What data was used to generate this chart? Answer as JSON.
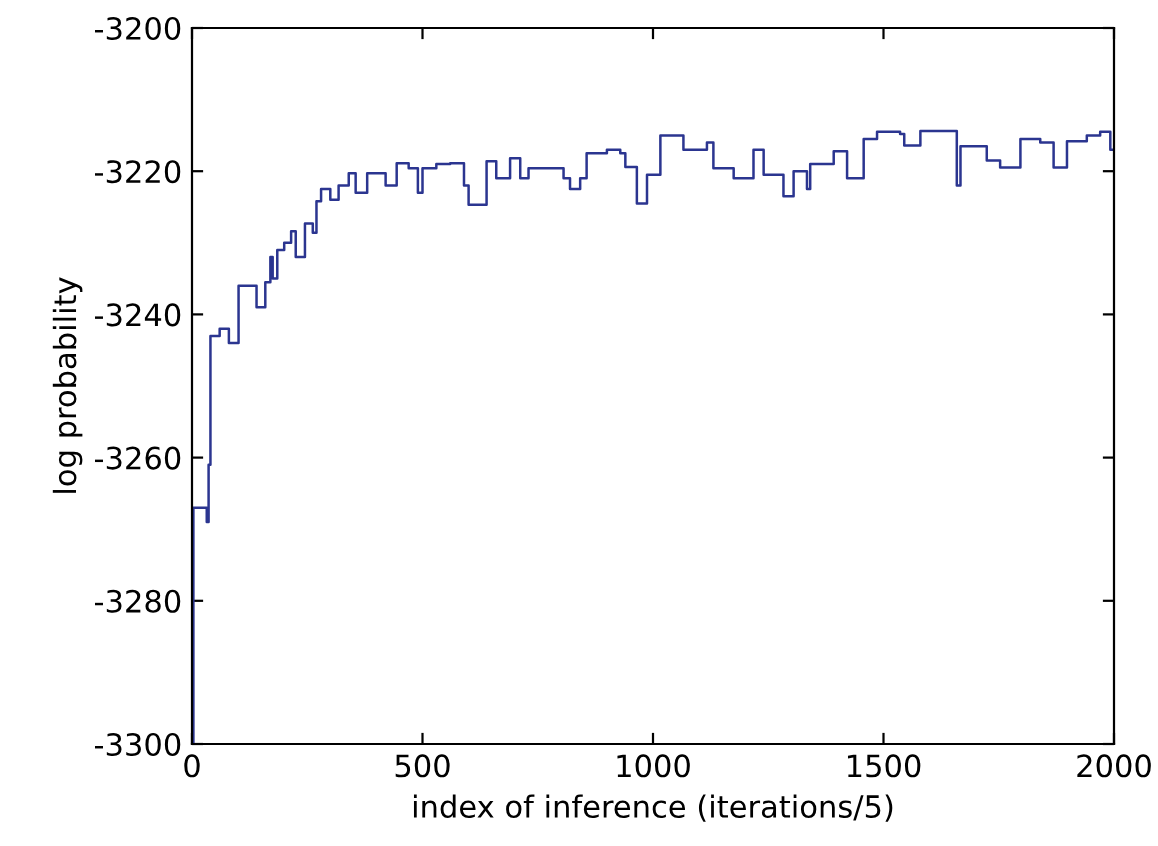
{
  "chart_data": {
    "type": "step",
    "xlabel": "index of inference (iterations/5)",
    "ylabel": "log probability",
    "xlim": [
      0,
      2000
    ],
    "ylim": [
      -3300,
      -3200
    ],
    "xticks": [
      0,
      500,
      1000,
      1500,
      2000
    ],
    "yticks": [
      -3300,
      -3280,
      -3260,
      -3240,
      -3220,
      -3200
    ],
    "grid": false,
    "line_style": "solid",
    "series": [
      {
        "color": "#2b3590",
        "x": [
          0,
          3,
          32,
          36,
          40,
          60,
          80,
          101,
          140,
          159,
          170,
          175,
          185,
          200,
          215,
          225,
          245,
          262,
          270,
          280,
          300,
          318,
          340,
          355,
          380,
          400,
          420,
          444,
          470,
          490,
          500,
          530,
          560,
          590,
          600,
          639,
          660,
          690,
          712,
          730,
          760,
          790,
          806,
          820,
          842,
          856,
          900,
          929,
          940,
          965,
          987,
          1016,
          1066,
          1117,
          1131,
          1175,
          1218,
          1240,
          1283,
          1305,
          1334,
          1341,
          1392,
          1421,
          1457,
          1486,
          1536,
          1545,
          1580,
          1659,
          1667,
          1724,
          1753,
          1797,
          1840,
          1869,
          1898,
          1941,
          1970,
          1992,
          2000
        ],
        "values": [
          -3300,
          -3267,
          -3269,
          -3261,
          -3243,
          -3242,
          -3244,
          -3236,
          -3239,
          -3235.5,
          -3232,
          -3235,
          -3231,
          -3230,
          -3228.4,
          -3232,
          -3227.3,
          -3228.6,
          -3224.2,
          -3222.5,
          -3224,
          -3222,
          -3220.3,
          -3223,
          -3220.3,
          -3220.3,
          -3222,
          -3218.9,
          -3219.6,
          -3223,
          -3219.6,
          -3219,
          -3218.9,
          -3222,
          -3224.7,
          -3218.6,
          -3221,
          -3218.2,
          -3221,
          -3219.6,
          -3219.6,
          -3219.6,
          -3221,
          -3222.5,
          -3221,
          -3217.5,
          -3217,
          -3217.5,
          -3219.4,
          -3224.5,
          -3220.5,
          -3215,
          -3217,
          -3216,
          -3219.6,
          -3221,
          -3217,
          -3220.5,
          -3223.5,
          -3220,
          -3222.5,
          -3219,
          -3217.2,
          -3221,
          -3215.5,
          -3214.5,
          -3214.8,
          -3216.4,
          -3214.4,
          -3222,
          -3216.5,
          -3218.5,
          -3219.5,
          -3215.5,
          -3216,
          -3219.5,
          -3215.8,
          -3215,
          -3214.5,
          -3217,
          -3217
        ]
      }
    ]
  }
}
